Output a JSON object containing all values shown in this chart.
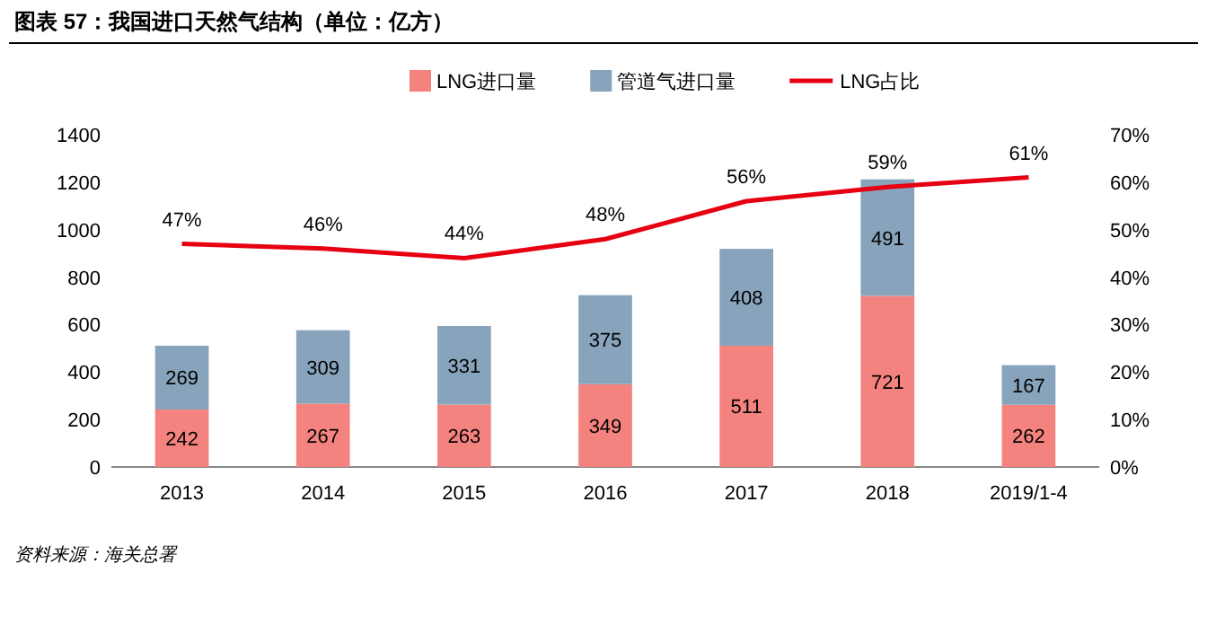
{
  "chart_data": {
    "type": "bar",
    "title": "图表 57：我国进口天然气结构（单位：亿方）",
    "categories": [
      "2013",
      "2014",
      "2015",
      "2016",
      "2017",
      "2018",
      "2019/1-4"
    ],
    "stacked": true,
    "data_labels": true,
    "legend": "top",
    "grid": false,
    "series": [
      {
        "name": "LNG进口量",
        "color": "#f4837f",
        "values": [
          242,
          267,
          263,
          349,
          511,
          721,
          262
        ]
      },
      {
        "name": "管道气进口量",
        "color": "#87a4bc",
        "values": [
          269,
          309,
          331,
          375,
          408,
          491,
          167
        ]
      },
      {
        "name": "LNG占比",
        "type": "line",
        "axis": "y2",
        "color": "#e60012",
        "values": [
          47,
          46,
          44,
          48,
          56,
          59,
          61
        ],
        "value_labels": [
          "47%",
          "46%",
          "44%",
          "48%",
          "56%",
          "59%",
          "61%"
        ]
      }
    ],
    "ylim": [
      0,
      1400
    ],
    "yticks": [
      0,
      200,
      400,
      600,
      800,
      1000,
      1200,
      1400
    ],
    "y2lim": [
      0,
      70
    ],
    "y2ticks": [
      {
        "value": 0,
        "label": "0%"
      },
      {
        "value": 10,
        "label": "10%"
      },
      {
        "value": 20,
        "label": "20%"
      },
      {
        "value": 30,
        "label": "30%"
      },
      {
        "value": 40,
        "label": "40%"
      },
      {
        "value": 50,
        "label": "50%"
      },
      {
        "value": 60,
        "label": "60%"
      },
      {
        "value": 70,
        "label": "70%"
      }
    ],
    "annotations": [
      "资料来源：海关总署"
    ]
  }
}
